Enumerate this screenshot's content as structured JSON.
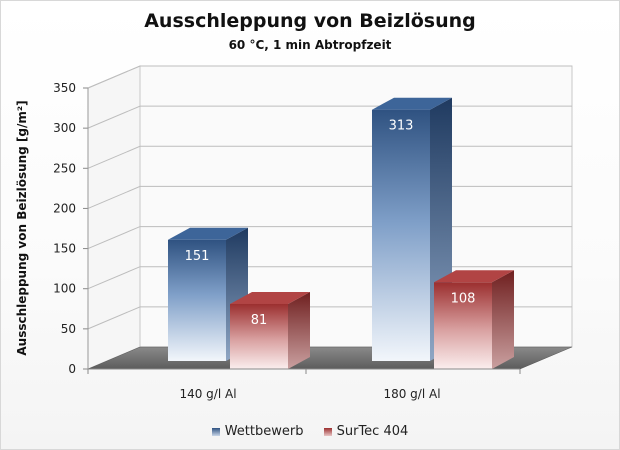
{
  "chart_data": {
    "type": "bar",
    "title": "Ausschleppung von Beizlösung",
    "subtitle": "60 °C, 1 min Abtropfzeit",
    "ylabel": "Ausschleppung von Beizlösung [g/m²]",
    "xlabel": "",
    "ylim": [
      0,
      350
    ],
    "yticks": [
      0,
      50,
      100,
      150,
      200,
      250,
      300,
      350
    ],
    "grid": true,
    "legend_position": "bottom",
    "categories": [
      "140 g/l Al",
      "180 g/l Al"
    ],
    "series": [
      {
        "name": "Wettbewerb",
        "values": [
          151,
          313
        ],
        "color": "#3a5f8f"
      },
      {
        "name": "SurTec 404",
        "values": [
          81,
          108
        ],
        "color": "#a33a3a"
      }
    ]
  }
}
